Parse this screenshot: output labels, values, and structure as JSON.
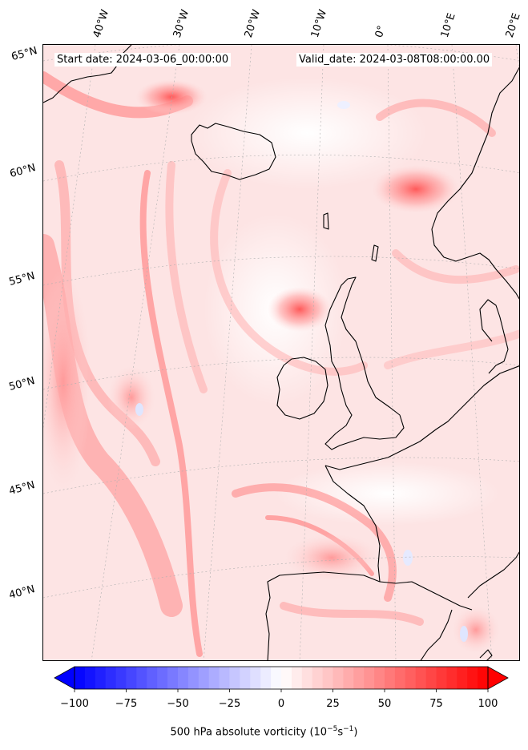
{
  "header": {
    "start_date": "Start date: 2024-03-06_00:00:00",
    "valid_date": "Valid_date: 2024-03-08T08:00:00.00"
  },
  "map": {
    "longitude_labels": [
      "40°W",
      "30°W",
      "20°W",
      "10°W",
      "0°",
      "10°E",
      "20°E"
    ],
    "latitude_labels": [
      "65°N",
      "60°N",
      "55°N",
      "50°N",
      "45°N",
      "40°N"
    ]
  },
  "colorbar": {
    "label_prefix": "500 hPa absolute vorticity (10",
    "label_exp1": "−5",
    "label_mid": "s",
    "label_exp2": "−1",
    "label_suffix": ")",
    "ticks": [
      "−100",
      "−75",
      "−50",
      "−25",
      "0",
      "25",
      "50",
      "75",
      "100"
    ],
    "min": -100,
    "max": 100,
    "low_color": "#0000ff",
    "mid_color": "#ffffff",
    "high_color": "#ff0000"
  },
  "colors": {
    "background_field": "#fde4e4",
    "coastline": "#000000",
    "gridline": "#b0b0b0"
  }
}
